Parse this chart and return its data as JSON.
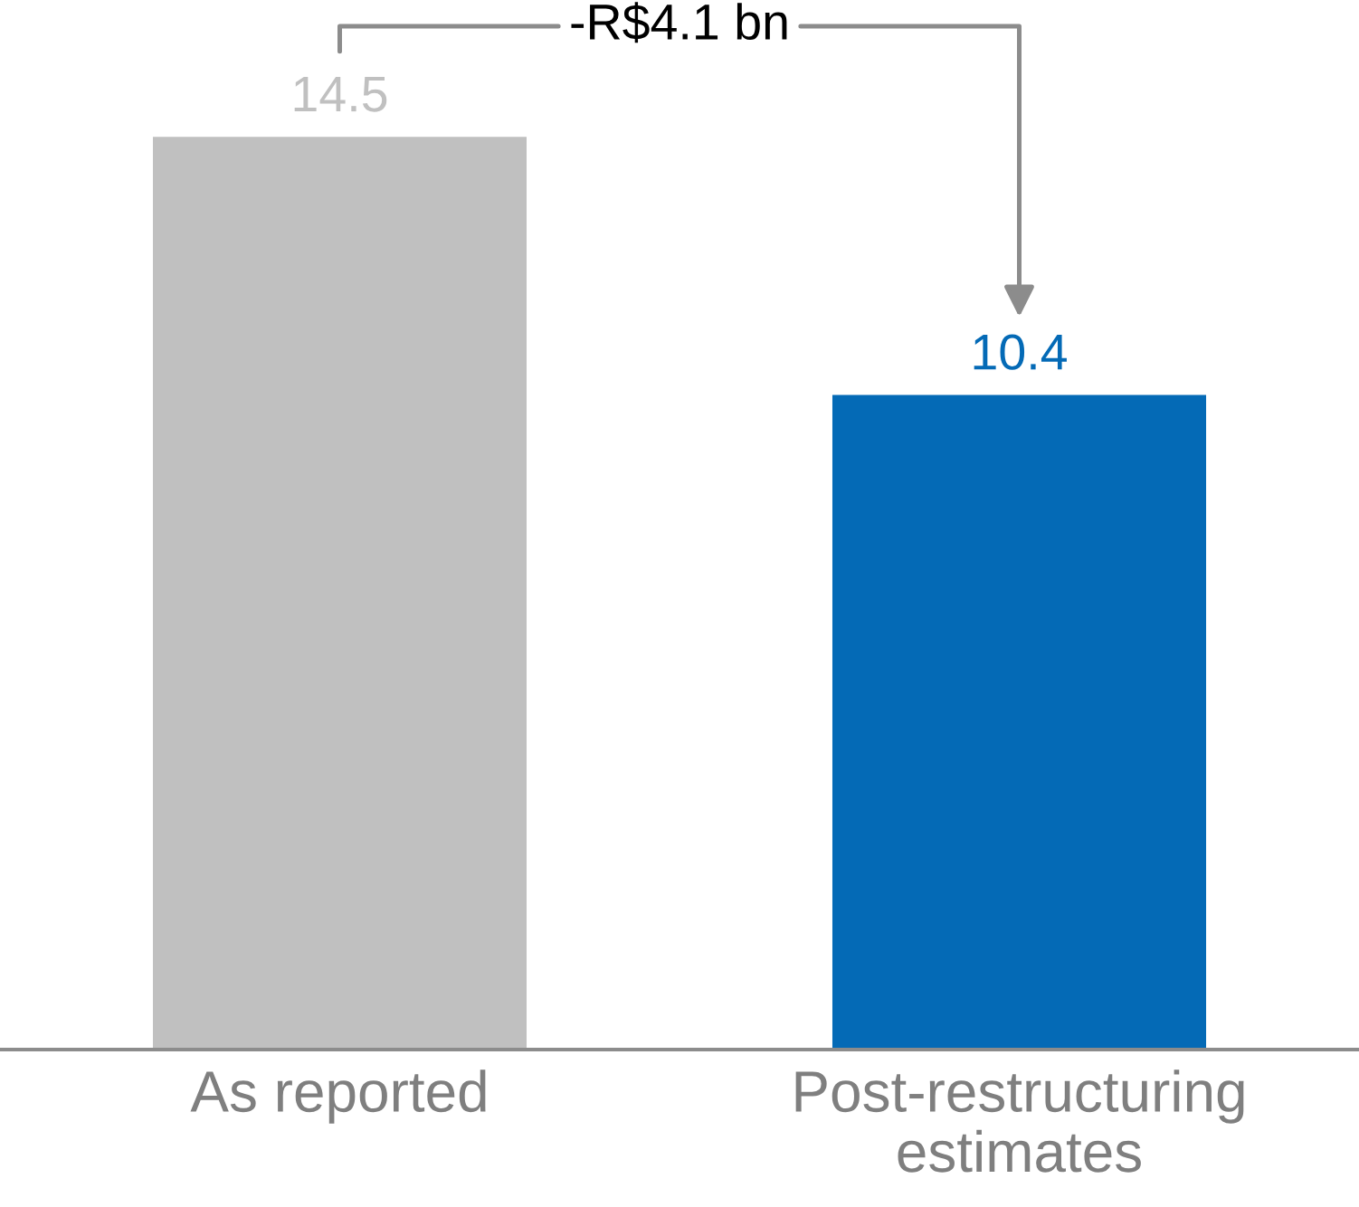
{
  "chart_data": {
    "type": "bar",
    "categories": [
      "As reported",
      "Post-restructuring\nestimates"
    ],
    "values": [
      14.5,
      10.4
    ],
    "colors": [
      "#c0c0c0",
      "#046ab6"
    ],
    "data_labels": true,
    "grid": false,
    "legend": false,
    "annotations": [
      "-R$4.1 bn"
    ]
  }
}
